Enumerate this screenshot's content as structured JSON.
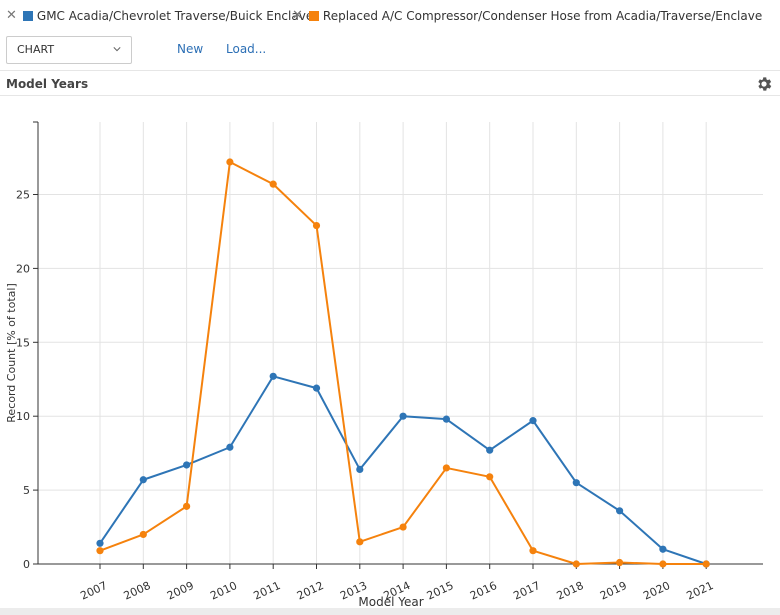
{
  "legend": [
    {
      "label": "GMC Acadia/Chevrolet Traverse/Buick Enclave",
      "color": "#2e75b6",
      "close": "✕"
    },
    {
      "label": "Replaced A/C Compressor/Condenser Hose from Acadia/Traverse/Enclave",
      "color": "#f5820d",
      "close": "✕"
    }
  ],
  "toolbar": {
    "select_value": "CHART",
    "new_label": "New",
    "load_label": "Load..."
  },
  "section": {
    "title": "Model Years",
    "settings_icon": "gear-icon"
  },
  "chart_data": {
    "type": "line",
    "xlabel": "Model Year",
    "ylabel": "Record Count [% of total]",
    "categories": [
      "2007",
      "2008",
      "2009",
      "2010",
      "2011",
      "2012",
      "2013",
      "2014",
      "2015",
      "2016",
      "2017",
      "2018",
      "2019",
      "2020",
      "2021"
    ],
    "ylim": [
      0,
      30
    ],
    "yticks": [
      0,
      5,
      10,
      15,
      20,
      25
    ],
    "grid": true,
    "series": [
      {
        "name": "GMC Acadia/Chevrolet Traverse/Buick Enclave",
        "color": "#2e75b6",
        "values": [
          1.4,
          5.7,
          6.7,
          7.9,
          12.7,
          11.9,
          6.4,
          10.0,
          9.8,
          7.7,
          9.7,
          5.5,
          3.6,
          1.0,
          0.0
        ]
      },
      {
        "name": "Replaced A/C Compressor/Condenser Hose from Acadia/Traverse/Enclave",
        "color": "#f5820d",
        "values": [
          0.9,
          2.0,
          3.9,
          27.2,
          25.7,
          22.9,
          1.5,
          2.5,
          6.5,
          5.9,
          0.9,
          0.0,
          0.1,
          0.0,
          0.0
        ]
      }
    ]
  }
}
